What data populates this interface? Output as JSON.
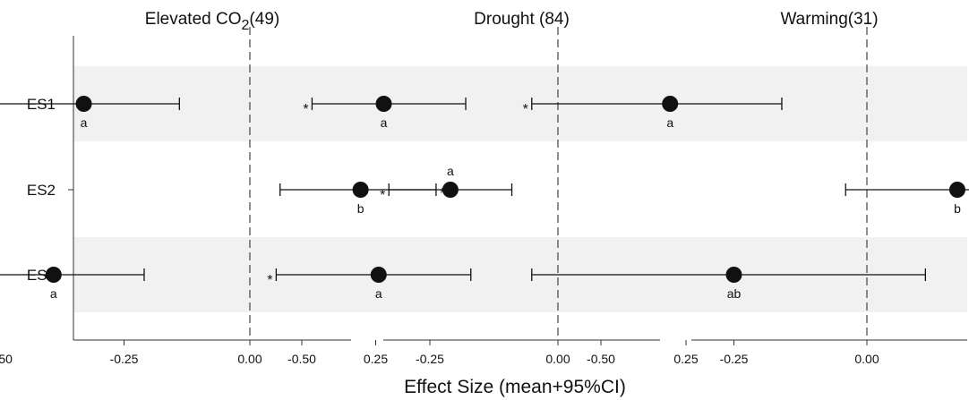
{
  "chart_data": {
    "type": "forest",
    "xlabel": "Effect Size (mean+95%CI)",
    "categories": [
      "ES1",
      "ES2",
      "ES3"
    ],
    "xticks": [
      -0.5,
      -0.25,
      0.0,
      0.25
    ],
    "xtick_labels": [
      "-0.50",
      "-0.25",
      "0.00",
      "0.25"
    ],
    "reference_line": 0,
    "grid": false,
    "shaded_rows": [
      "ES1",
      "ES3"
    ],
    "panels": [
      {
        "title_pre": "Elevated CO",
        "title_sub": "2",
        "title_post": "(49)",
        "xlim": [
          -0.68,
          0.4
        ],
        "points": [
          {
            "category": "ES1",
            "mean": -0.33,
            "ci_low": -0.5,
            "ci_high": -0.14,
            "group": "a",
            "group_pos": "below",
            "significant": true,
            "sig_side": "left"
          },
          {
            "category": "ES2",
            "mean": 0.22,
            "ci_low": 0.06,
            "ci_high": 0.37,
            "group": "b",
            "group_pos": "below",
            "significant": true,
            "sig_side": "right"
          },
          {
            "category": "ES3",
            "mean": -0.39,
            "ci_low": -0.58,
            "ci_high": -0.21,
            "group": "a",
            "group_pos": "below",
            "significant": true,
            "sig_side": "left"
          }
        ]
      },
      {
        "title_pre": "Drought (84)",
        "title_sub": "",
        "title_post": "",
        "xlim": [
          -0.68,
          0.4
        ],
        "points": [
          {
            "category": "ES1",
            "mean": -0.34,
            "ci_low": -0.48,
            "ci_high": -0.18,
            "group": "a",
            "group_pos": "below",
            "significant": true,
            "sig_side": "left"
          },
          {
            "category": "ES2",
            "mean": -0.21,
            "ci_low": -0.33,
            "ci_high": -0.09,
            "group": "a",
            "group_pos": "above",
            "significant": true,
            "sig_side": "left"
          },
          {
            "category": "ES3",
            "mean": -0.35,
            "ci_low": -0.55,
            "ci_high": -0.17,
            "group": "a",
            "group_pos": "below",
            "significant": true,
            "sig_side": "left"
          }
        ]
      },
      {
        "title_pre": "Warming(31)",
        "title_sub": "",
        "title_post": "",
        "xlim": [
          -0.68,
          0.4
        ],
        "points": [
          {
            "category": "ES1",
            "mean": -0.37,
            "ci_low": -0.63,
            "ci_high": -0.16,
            "group": "a",
            "group_pos": "below",
            "significant": true,
            "sig_side": "left"
          },
          {
            "category": "ES2",
            "mean": 0.17,
            "ci_low": -0.04,
            "ci_high": 0.39,
            "group": "b",
            "group_pos": "below",
            "significant": false,
            "sig_side": ""
          },
          {
            "category": "ES3",
            "mean": -0.25,
            "ci_low": -0.63,
            "ci_high": 0.11,
            "group": "ab",
            "group_pos": "below",
            "significant": false,
            "sig_side": ""
          }
        ]
      }
    ]
  },
  "significance_marker": "*",
  "colors": {
    "band": "#f1f1f1",
    "ink": "#111111",
    "axis": "#333333"
  }
}
